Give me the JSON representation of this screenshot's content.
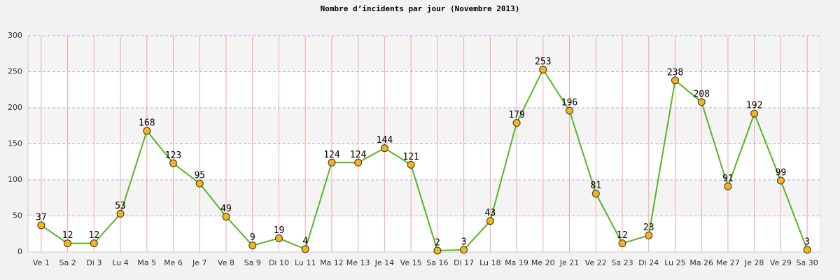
{
  "chart_data": {
    "type": "line",
    "title": "Nombre d’incidents par jour (Novembre 2013)",
    "categories": [
      "Ve 1",
      "Sa 2",
      "Di 3",
      "Lu 4",
      "Ma 5",
      "Me 6",
      "Je 7",
      "Ve 8",
      "Sa 9",
      "Di 10",
      "Lu 11",
      "Ma 12",
      "Me 13",
      "Je 14",
      "Ve 15",
      "Sa 16",
      "Di 17",
      "Lu 18",
      "Ma 19",
      "Me 20",
      "Je 21",
      "Ve 22",
      "Sa 23",
      "Di 24",
      "Lu 25",
      "Ma 26",
      "Me 27",
      "Je 28",
      "Ve 29",
      "Sa 30"
    ],
    "values": [
      37,
      12,
      12,
      53,
      168,
      123,
      95,
      49,
      9,
      19,
      4,
      124,
      124,
      144,
      121,
      2,
      3,
      43,
      179,
      253,
      196,
      81,
      12,
      23,
      238,
      208,
      91,
      192,
      99,
      3
    ],
    "color": "#55b624",
    "marker_color": "#f5b31c",
    "ylim": [
      0,
      300
    ],
    "yticks": [
      0,
      50,
      100,
      150,
      200,
      250,
      300
    ],
    "grid": true
  }
}
